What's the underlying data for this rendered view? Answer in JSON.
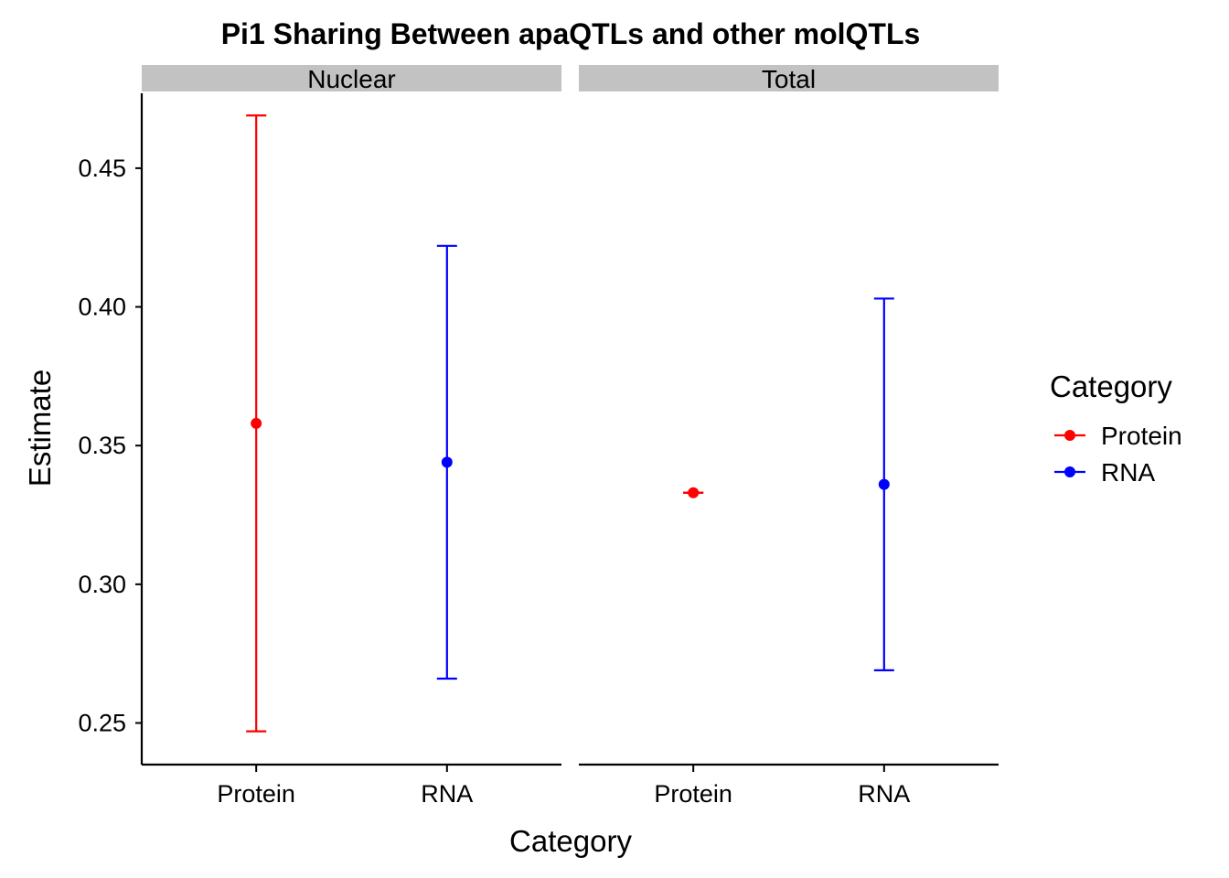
{
  "chart_data": {
    "type": "errorbar",
    "title": "Pi1 Sharing Between apaQTLs and other molQTLs",
    "xlabel": "Category",
    "ylabel": "Estimate",
    "ylim": [
      0.235,
      0.477
    ],
    "yticks": [
      0.25,
      0.3,
      0.35,
      0.4,
      0.45
    ],
    "ytick_labels": [
      "0.25",
      "0.30",
      "0.35",
      "0.40",
      "0.45"
    ],
    "categories": [
      "Protein",
      "RNA"
    ],
    "grid": false,
    "legend": {
      "title": "Category",
      "position": "right",
      "entries": [
        {
          "label": "Protein",
          "color": "#ff0000"
        },
        {
          "label": "RNA",
          "color": "#0000ff"
        }
      ]
    },
    "panels": [
      {
        "name": "Nuclear",
        "points": [
          {
            "category": "Protein",
            "estimate": 0.358,
            "lower": 0.247,
            "upper": 0.469,
            "color": "#ff0000"
          },
          {
            "category": "RNA",
            "estimate": 0.344,
            "lower": 0.266,
            "upper": 0.422,
            "color": "#0000ff"
          }
        ]
      },
      {
        "name": "Total",
        "points": [
          {
            "category": "Protein",
            "estimate": 0.333,
            "lower": 0.333,
            "upper": 0.333,
            "color": "#ff0000"
          },
          {
            "category": "RNA",
            "estimate": 0.336,
            "lower": 0.269,
            "upper": 0.403,
            "color": "#0000ff"
          }
        ]
      }
    ]
  }
}
